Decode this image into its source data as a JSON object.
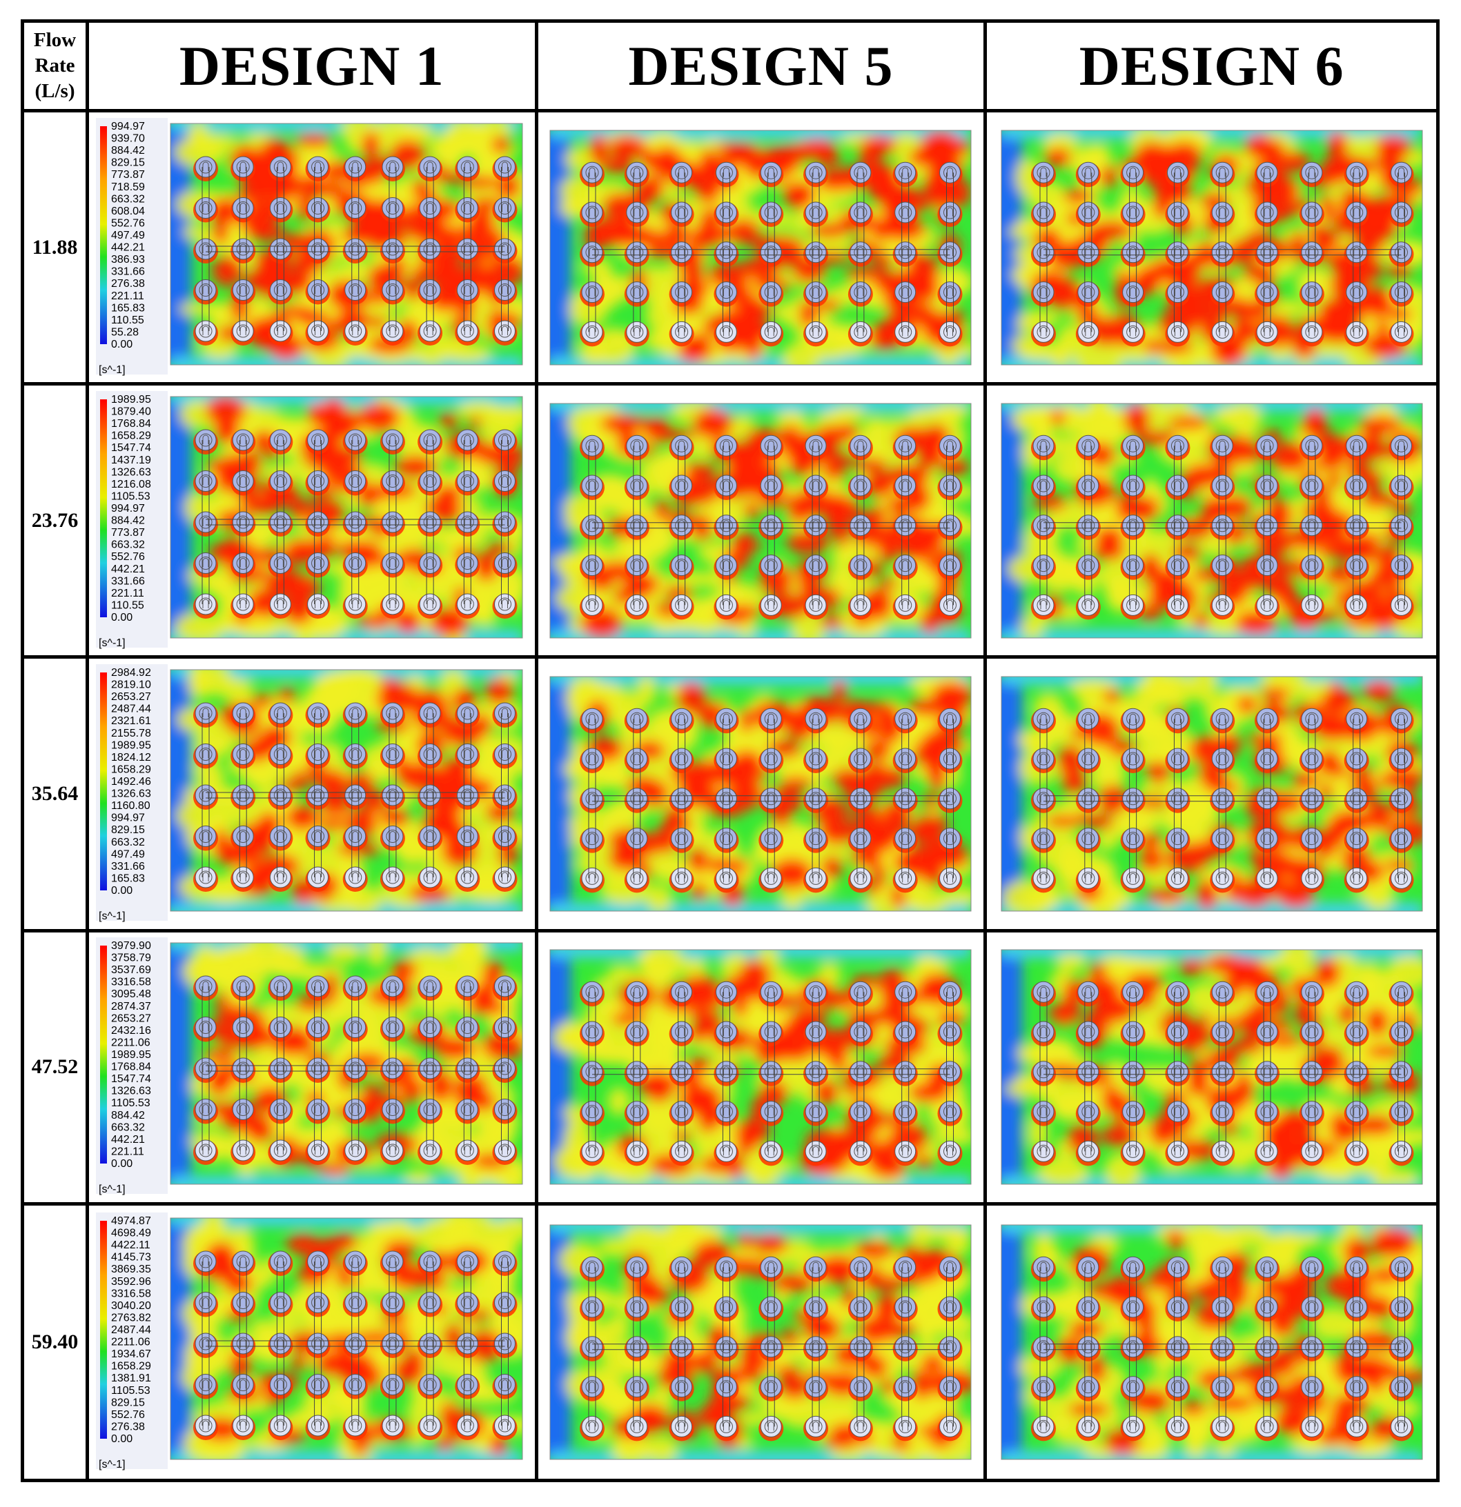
{
  "header": {
    "corner_label_lines": [
      "Flow",
      "Rate",
      "(L/s)"
    ],
    "designs": [
      "DESIGN 1",
      "DESIGN 5",
      "DESIGN 6"
    ]
  },
  "rows": [
    {
      "flow_rate": "11.88",
      "legend": [
        "994.97",
        "939.70",
        "884.42",
        "829.15",
        "773.87",
        "718.59",
        "663.32",
        "608.04",
        "552.76",
        "497.49",
        "442.21",
        "386.93",
        "331.66",
        "276.38",
        "221.11",
        "165.83",
        "110.55",
        "55.28",
        "0.00"
      ]
    },
    {
      "flow_rate": "23.76",
      "legend": [
        "1989.95",
        "1879.40",
        "1768.84",
        "1658.29",
        "1547.74",
        "1437.19",
        "1326.63",
        "1216.08",
        "1105.53",
        "994.97",
        "884.42",
        "773.87",
        "663.32",
        "552.76",
        "442.21",
        "331.66",
        "221.11",
        "110.55",
        "0.00"
      ]
    },
    {
      "flow_rate": "35.64",
      "legend": [
        "2984.92",
        "2819.10",
        "2653.27",
        "2487.44",
        "2321.61",
        "2155.78",
        "1989.95",
        "1824.12",
        "1658.29",
        "1492.46",
        "1326.63",
        "1160.80",
        "994.97",
        "829.15",
        "663.32",
        "497.49",
        "331.66",
        "165.83",
        "0.00"
      ]
    },
    {
      "flow_rate": "47.52",
      "legend": [
        "3979.90",
        "3758.79",
        "3537.69",
        "3316.58",
        "3095.48",
        "2874.37",
        "2653.27",
        "2432.16",
        "2211.06",
        "1989.95",
        "1768.84",
        "1547.74",
        "1326.63",
        "1105.53",
        "884.42",
        "663.32",
        "442.21",
        "221.11",
        "0.00"
      ]
    },
    {
      "flow_rate": "59.40",
      "legend": [
        "4974.87",
        "4698.49",
        "4422.11",
        "4145.73",
        "3869.35",
        "3592.96",
        "3316.58",
        "3040.20",
        "2763.82",
        "2487.44",
        "2211.06",
        "1934.67",
        "1658.29",
        "1381.91",
        "1105.53",
        "829.15",
        "552.76",
        "276.38",
        "0.00"
      ]
    }
  ],
  "legend_unit": "[s^-1]",
  "colors": {
    "low": "#1f3fd6",
    "mid": "#2ee82e",
    "high": "#ff1f00",
    "cylinder": "#a9b6e6"
  }
}
